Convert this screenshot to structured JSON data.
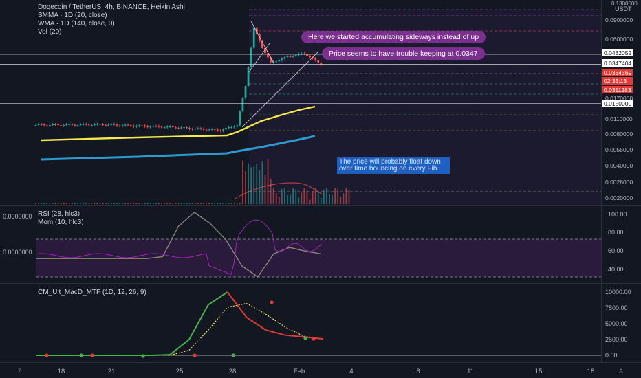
{
  "legend": {
    "title": "Dogecoin / TetherUS, 4h, BINANCE, Heikin Ashi",
    "smma": "SMMA · 1D (20, close)",
    "wma": "WMA · 1D (140, close, 0)",
    "vol": "Vol (20)",
    "rsi": "RSI (28, hlc3)",
    "mom": "Mom (10, hlc3)",
    "macd": "CM_Ult_MacD_MTF (1D, 12, 26, 9)"
  },
  "annotations": {
    "bubble1": "Here we started accumulating sideways instead of up",
    "bubble2": "Price seems to have trouble keeping at 0.0347",
    "note": "The price will probably float down over time bouncing on every Fib."
  },
  "colors": {
    "background": "#131722",
    "up": "#26a69a",
    "down": "#ef5350",
    "smma": "#f5e94b",
    "wma": "#2e9ad0",
    "rsi": "#8a8a7a",
    "mom": "#9c27b0",
    "macd_up": "#4caf50",
    "macd_down": "#e53935",
    "signal": "#f5e94b",
    "bubble": "#7b2f8e",
    "note": "#1e5fc2"
  },
  "price_axis": {
    "currency": "USDT",
    "ticks": [
      "0.1300000",
      "0.0900000",
      "0.0600000",
      "0.0170000",
      "0.0110000",
      "0.0080000",
      "0.0055000",
      "0.0040000",
      "0.0028000",
      "0.0020000"
    ],
    "labels": [
      {
        "text": "0.0432052",
        "style": "white"
      },
      {
        "text": "0.0347404",
        "style": "white"
      },
      {
        "text": "0.0334369",
        "style": "red"
      },
      {
        "text": "02:33:13",
        "style": "red"
      },
      {
        "text": "0.0311283",
        "style": "red"
      },
      {
        "text": "0.0150000",
        "style": "white"
      }
    ]
  },
  "rsi_axis": {
    "ticks": [
      "100.00",
      "80.00",
      "60.00",
      "40.00"
    ]
  },
  "mom_axis": {
    "ticks": [
      "0.0500000",
      "0.0000000"
    ]
  },
  "macd_axis": {
    "ticks": [
      "10000.00",
      "7500.00",
      "5000.00",
      "2500.00",
      "0.00"
    ]
  },
  "time_axis": {
    "ticks": [
      "18",
      "21",
      "25",
      "28",
      "Feb",
      "4",
      "8",
      "11",
      "15",
      "18"
    ]
  },
  "corners": {
    "left": "Z",
    "right": "A"
  },
  "chart_data": [
    {
      "type": "candlestick",
      "title": "Dogecoin / TetherUS, 4h, BINANCE, Heikin Ashi",
      "x_range": [
        "Jan 16",
        "Feb 19"
      ],
      "scale": "log",
      "price_path": [
        {
          "x": "Jan 16",
          "y": 0.0095
        },
        {
          "x": "Jan 20",
          "y": 0.0096
        },
        {
          "x": "Jan 24",
          "y": 0.0091
        },
        {
          "x": "Jan 27",
          "y": 0.0085
        },
        {
          "x": "Jan 28",
          "y": 0.0095
        },
        {
          "x": "Jan 28 12:00",
          "y": 0.022
        },
        {
          "x": "Jan 29",
          "y": 0.075
        },
        {
          "x": "Jan 29 12:00",
          "y": 0.05
        },
        {
          "x": "Jan 30",
          "y": 0.036
        },
        {
          "x": "Jan 31",
          "y": 0.041
        },
        {
          "x": "Feb 1",
          "y": 0.044
        },
        {
          "x": "Feb 2",
          "y": 0.0347
        }
      ],
      "horizontal_levels": [
        0.0432052,
        0.0347404,
        0.015
      ],
      "series": [
        {
          "name": "SMMA · 1D (20, close)",
          "values": [
            0.0065,
            0.0068,
            0.0072,
            0.0078,
            0.0083,
            0.0105,
            0.0135,
            0.015
          ]
        },
        {
          "name": "WMA · 1D (140, close, 0)",
          "values": [
            0.0043,
            0.0045,
            0.0047,
            0.0049,
            0.005,
            0.006,
            0.0068,
            0.0075
          ]
        }
      ]
    },
    {
      "type": "line",
      "title": "RSI (28, hlc3)",
      "ylim": [
        30,
        100
      ],
      "levels": [
        70,
        30
      ],
      "values": [
        50,
        50,
        50,
        50,
        50,
        50,
        50,
        50,
        52,
        85,
        100,
        88,
        70,
        42,
        30,
        55,
        62,
        58,
        55
      ]
    },
    {
      "type": "line",
      "title": "CM_Ult_MacD_MTF (1D, 12, 26, 9)",
      "ylim": [
        0,
        10000
      ],
      "series": [
        {
          "values": [
            0,
            0,
            0,
            0,
            0,
            0,
            0,
            100,
            2500,
            8000,
            10000,
            6000,
            4000,
            3200,
            2900,
            2600
          ]
        },
        {
          "values": [
            0,
            0,
            0,
            0,
            0,
            0,
            0,
            0,
            800,
            4000,
            7600,
            8200,
            6500,
            4500,
            3000,
            2600
          ]
        }
      ]
    }
  ]
}
